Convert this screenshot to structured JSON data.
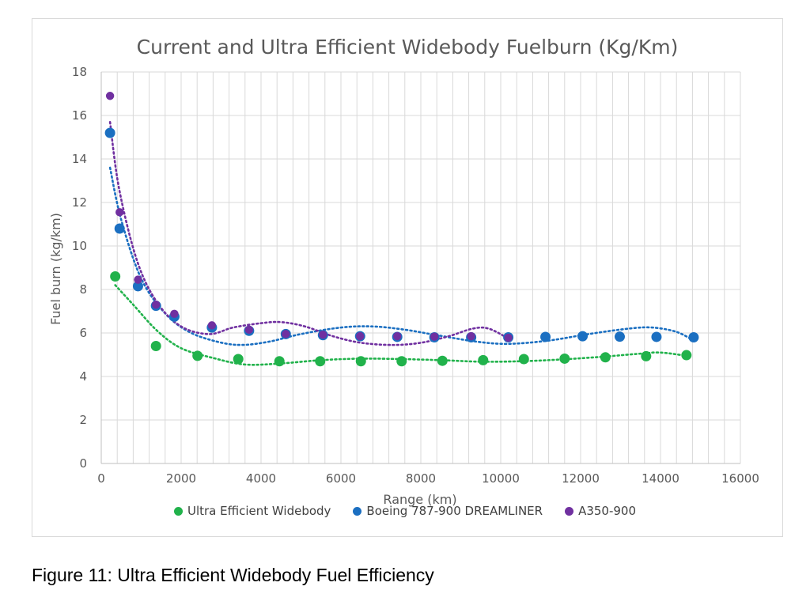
{
  "chart_data": {
    "type": "scatter",
    "title": "Current and Ultra Efficient Widebody Fuelburn (Kg/Km)",
    "xlabel": "Range (km)",
    "ylabel": "Fuel burn (kg/km)",
    "xlim": [
      0,
      16000
    ],
    "ylim": [
      0,
      18
    ],
    "x_ticks": [
      0,
      2000,
      4000,
      6000,
      8000,
      10000,
      12000,
      14000,
      16000
    ],
    "y_ticks": [
      0,
      2,
      4,
      6,
      8,
      10,
      12,
      14,
      16,
      18
    ],
    "grid": "vertical-minor-and-horizontal",
    "legend_position": "bottom",
    "trendlines": "polynomial, dotted, one per series",
    "series": [
      {
        "name": "Ultra Efficient Widebody",
        "color": "#21b24b",
        "x": [
          350,
          1370,
          2410,
          3430,
          4460,
          5480,
          6500,
          7520,
          8540,
          9560,
          10580,
          11600,
          12620,
          13640,
          14650
        ],
        "y": [
          8.6,
          5.4,
          4.95,
          4.8,
          4.7,
          4.7,
          4.7,
          4.7,
          4.72,
          4.75,
          4.8,
          4.82,
          4.88,
          4.93,
          4.98
        ]
      },
      {
        "name": "Boeing 787-900 DREAMLINER",
        "color": "#1b6fc1",
        "x": [
          220,
          460,
          920,
          1370,
          1830,
          2770,
          3700,
          4620,
          5550,
          6480,
          7410,
          8340,
          9260,
          10190,
          11120,
          12050,
          12980,
          13900,
          14830
        ],
        "y": [
          15.2,
          10.8,
          8.15,
          7.25,
          6.75,
          6.25,
          6.1,
          5.95,
          5.9,
          5.85,
          5.82,
          5.8,
          5.8,
          5.8,
          5.82,
          5.85,
          5.83,
          5.82,
          5.8
        ]
      },
      {
        "name": "A350-900",
        "color": "#7030a0",
        "x": [
          220,
          460,
          920,
          1370,
          1830,
          2770,
          3700,
          4620,
          5550,
          6480,
          7410,
          8340,
          9260,
          10190
        ],
        "y": [
          16.9,
          11.55,
          8.45,
          7.3,
          6.88,
          6.35,
          6.15,
          5.95,
          5.92,
          5.85,
          5.85,
          5.83,
          5.85,
          5.78
        ]
      }
    ]
  },
  "caption": "Figure 11: Ultra Efficient Widebody Fuel Efficiency"
}
